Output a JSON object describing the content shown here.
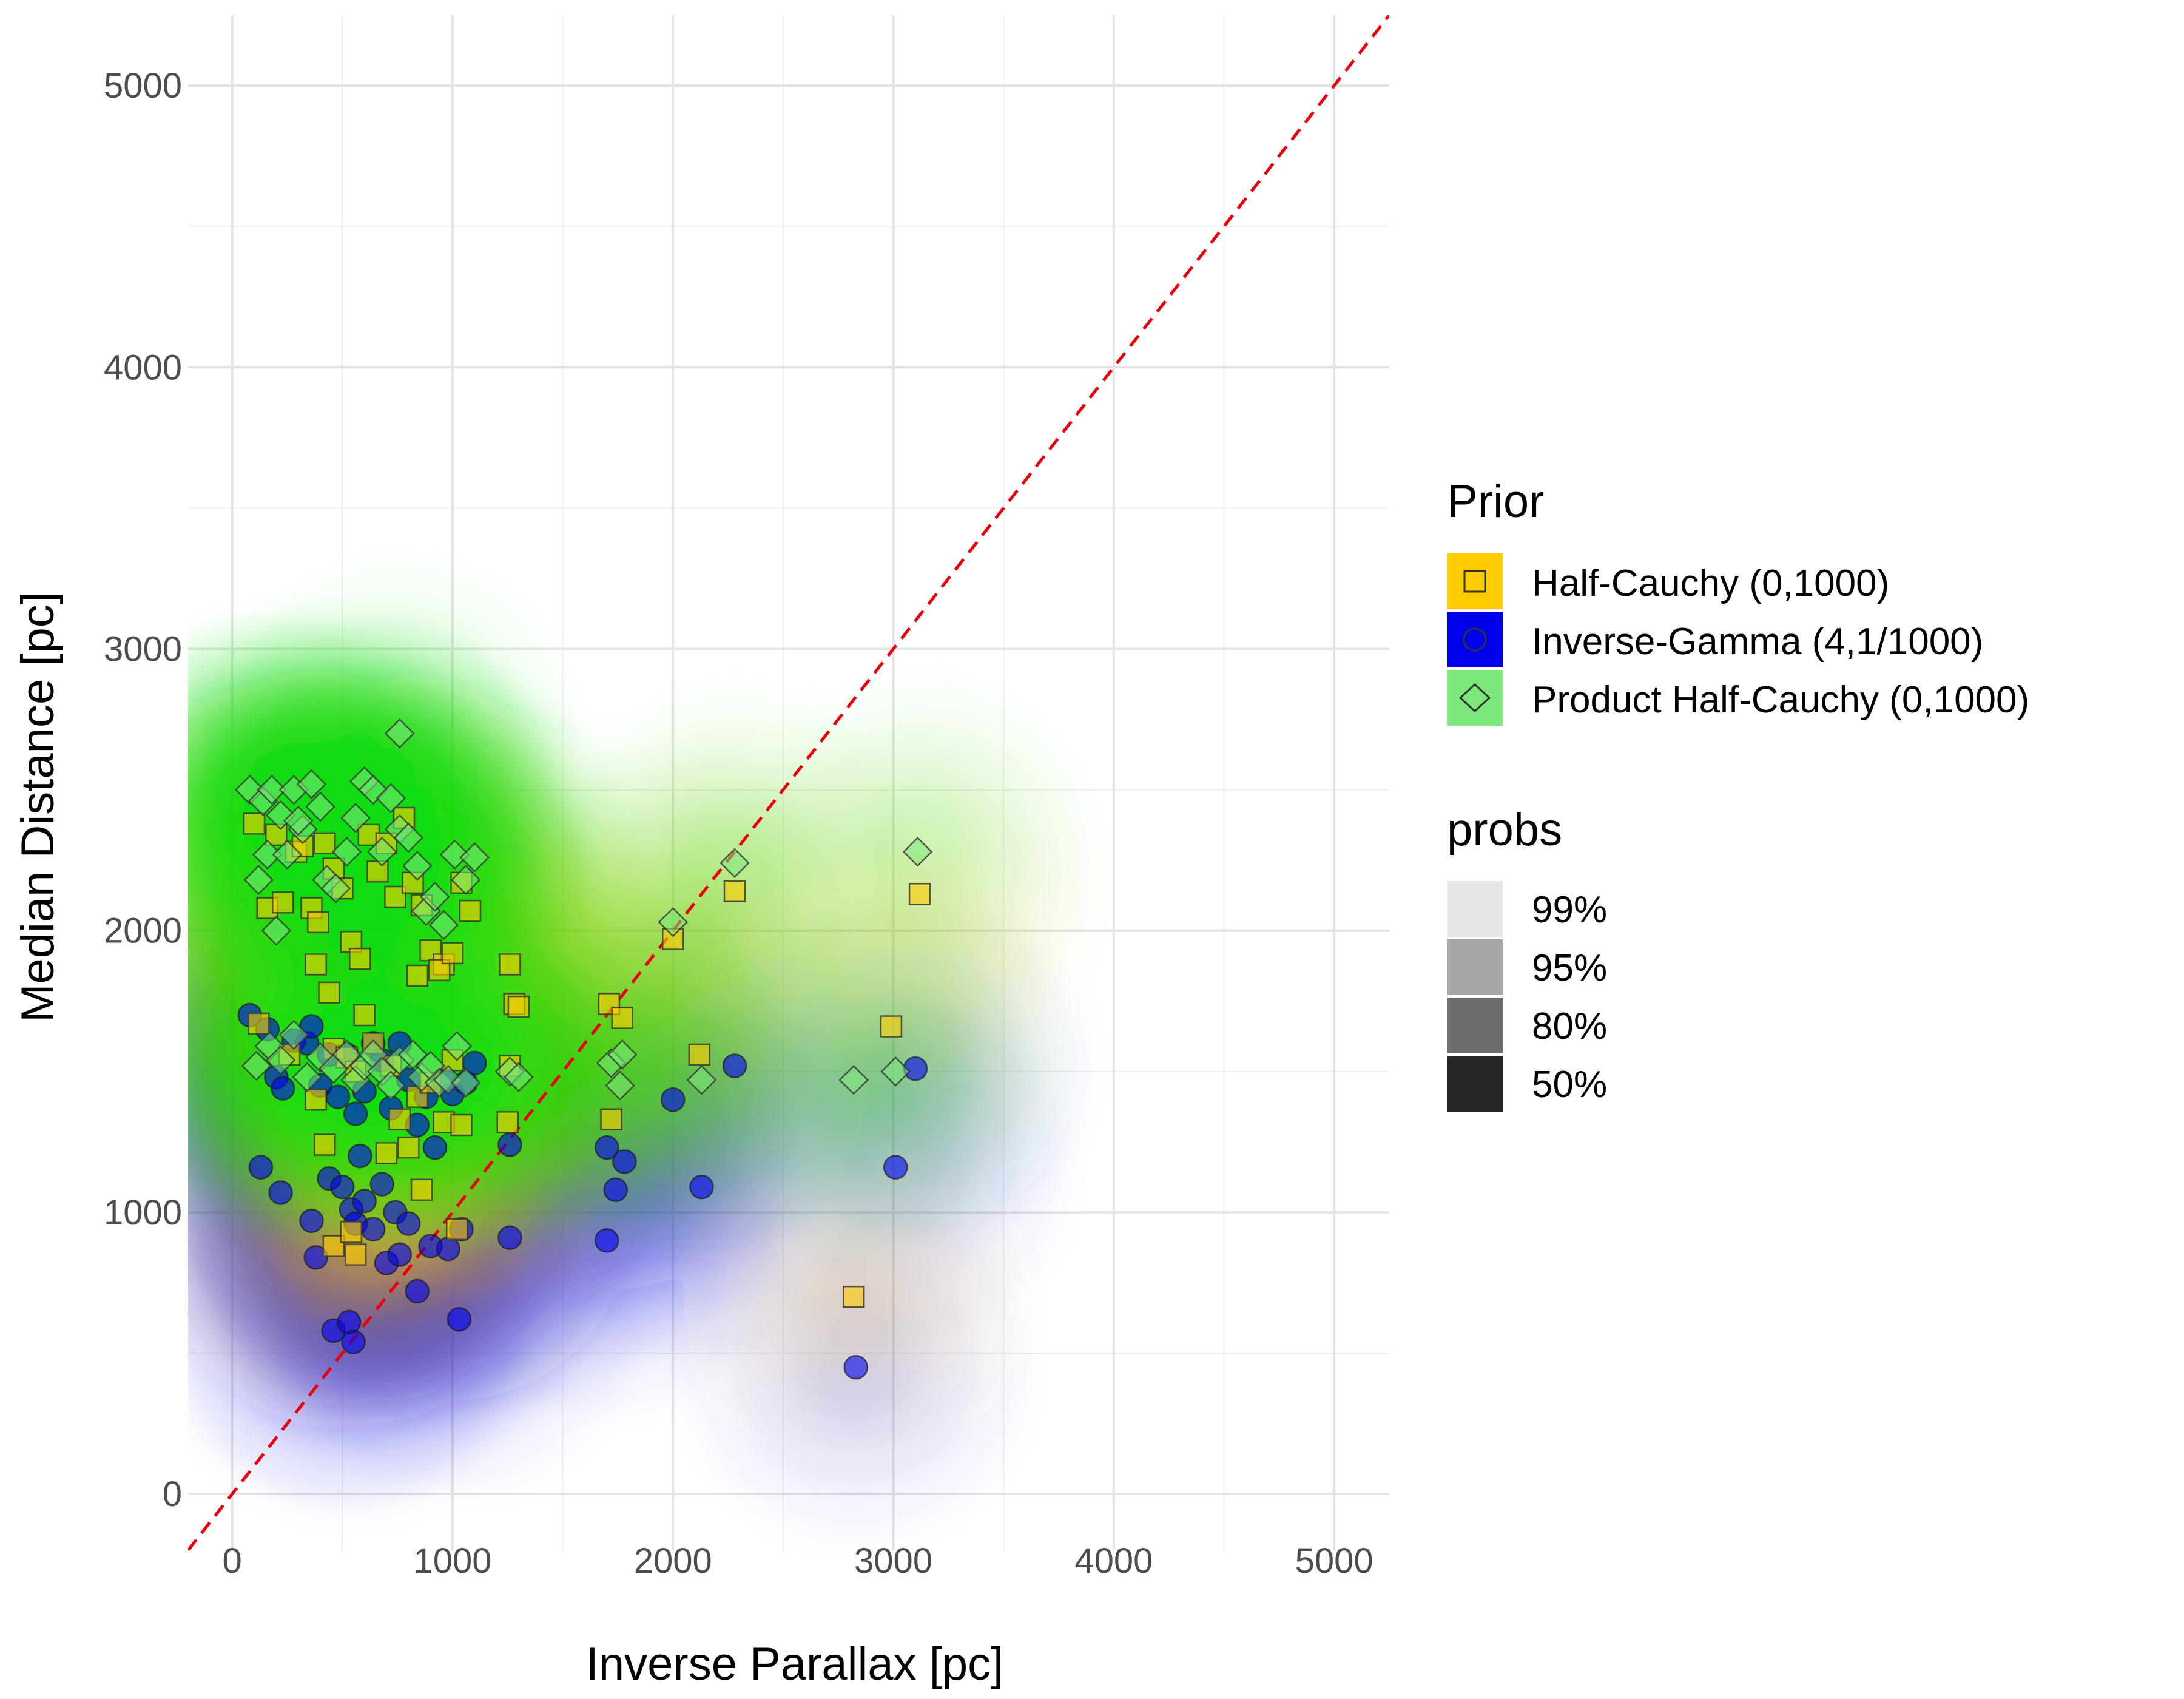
{
  "chart_data": {
    "type": "scatter",
    "xlabel": "Inverse Parallax [pc]",
    "ylabel": "Median Distance [pc]",
    "xlim": [
      -200,
      5250
    ],
    "ylim": [
      -200,
      5250
    ],
    "x_ticks": [
      0,
      1000,
      2000,
      3000,
      4000,
      5000
    ],
    "y_ticks": [
      0,
      1000,
      2000,
      3000,
      4000,
      5000
    ],
    "x_tick_labels": [
      "0",
      "1000",
      "2000",
      "3000",
      "4000",
      "5000"
    ],
    "y_tick_labels": [
      "0",
      "1000",
      "2000",
      "3000",
      "4000",
      "5000"
    ],
    "grid": true,
    "reference_line": {
      "type": "y=x",
      "style": "dashed",
      "color": "#e8000b"
    },
    "legend_prior_title": "Prior",
    "legend_probs_title": "probs",
    "legend_position": "right",
    "prob_levels": [
      "99%",
      "95%",
      "80%",
      "50%"
    ],
    "prob_colors": [
      "#e6e6e6",
      "#a6a6a6",
      "#6b6b6b",
      "#262828"
    ],
    "series": [
      {
        "name": "Half-Cauchy (0,1000)",
        "color": "#FFCC00",
        "shape": "square",
        "points": [
          [
            100,
            2380
          ],
          [
            160,
            2080
          ],
          [
            200,
            2340
          ],
          [
            230,
            2100
          ],
          [
            290,
            2280
          ],
          [
            320,
            2300
          ],
          [
            360,
            2080
          ],
          [
            390,
            2030
          ],
          [
            420,
            2310
          ],
          [
            460,
            2220
          ],
          [
            500,
            2150
          ],
          [
            540,
            1960
          ],
          [
            580,
            1900
          ],
          [
            620,
            2340
          ],
          [
            660,
            2210
          ],
          [
            700,
            2310
          ],
          [
            740,
            2120
          ],
          [
            780,
            2400
          ],
          [
            820,
            2170
          ],
          [
            860,
            2090
          ],
          [
            900,
            1930
          ],
          [
            960,
            1880
          ],
          [
            1040,
            2170
          ],
          [
            1080,
            2070
          ],
          [
            380,
            1880
          ],
          [
            440,
            1780
          ],
          [
            600,
            1700
          ],
          [
            720,
            1520
          ],
          [
            840,
            1840
          ],
          [
            940,
            1860
          ],
          [
            1000,
            1920
          ],
          [
            1260,
            1880
          ],
          [
            1280,
            1740
          ],
          [
            1300,
            1730
          ],
          [
            1710,
            1740
          ],
          [
            1770,
            1690
          ],
          [
            1720,
            1330
          ],
          [
            2000,
            1970
          ],
          [
            2120,
            1560
          ],
          [
            2280,
            2140
          ],
          [
            120,
            1670
          ],
          [
            260,
            1560
          ],
          [
            380,
            1400
          ],
          [
            420,
            1240
          ],
          [
            460,
            1580
          ],
          [
            520,
            1550
          ],
          [
            560,
            1500
          ],
          [
            640,
            1600
          ],
          [
            700,
            1210
          ],
          [
            760,
            1330
          ],
          [
            800,
            1230
          ],
          [
            840,
            1410
          ],
          [
            860,
            1080
          ],
          [
            900,
            1460
          ],
          [
            960,
            1320
          ],
          [
            1000,
            1540
          ],
          [
            1040,
            1310
          ],
          [
            460,
            880
          ],
          [
            540,
            930
          ],
          [
            560,
            850
          ],
          [
            1020,
            940
          ],
          [
            1250,
            1320
          ],
          [
            1260,
            1520
          ],
          [
            2820,
            700
          ],
          [
            2990,
            1660
          ],
          [
            3120,
            2130
          ]
        ]
      },
      {
        "name": "Inverse-Gamma (4,1/1000)",
        "color": "#0000EE",
        "shape": "circle",
        "points": [
          [
            80,
            1700
          ],
          [
            160,
            1650
          ],
          [
            200,
            1480
          ],
          [
            230,
            1440
          ],
          [
            280,
            1610
          ],
          [
            340,
            1600
          ],
          [
            360,
            1660
          ],
          [
            400,
            1450
          ],
          [
            440,
            1560
          ],
          [
            480,
            1410
          ],
          [
            520,
            1560
          ],
          [
            560,
            1350
          ],
          [
            600,
            1430
          ],
          [
            640,
            1600
          ],
          [
            680,
            1540
          ],
          [
            720,
            1370
          ],
          [
            760,
            1600
          ],
          [
            800,
            1470
          ],
          [
            840,
            1310
          ],
          [
            880,
            1410
          ],
          [
            920,
            1230
          ],
          [
            960,
            1470
          ],
          [
            1000,
            1420
          ],
          [
            1060,
            1460
          ],
          [
            1100,
            1530
          ],
          [
            130,
            1160
          ],
          [
            220,
            1070
          ],
          [
            360,
            970
          ],
          [
            380,
            840
          ],
          [
            440,
            1120
          ],
          [
            500,
            1090
          ],
          [
            540,
            1010
          ],
          [
            560,
            960
          ],
          [
            580,
            1200
          ],
          [
            600,
            1040
          ],
          [
            640,
            940
          ],
          [
            680,
            1100
          ],
          [
            700,
            820
          ],
          [
            740,
            1000
          ],
          [
            760,
            850
          ],
          [
            800,
            960
          ],
          [
            840,
            720
          ],
          [
            900,
            880
          ],
          [
            980,
            870
          ],
          [
            1040,
            940
          ],
          [
            460,
            580
          ],
          [
            530,
            610
          ],
          [
            550,
            540
          ],
          [
            1030,
            620
          ],
          [
            1260,
            910
          ],
          [
            1260,
            1240
          ],
          [
            1700,
            900
          ],
          [
            1740,
            1080
          ],
          [
            1780,
            1180
          ],
          [
            1700,
            1230
          ],
          [
            2000,
            1400
          ],
          [
            2130,
            1090
          ],
          [
            2280,
            1520
          ],
          [
            2830,
            450
          ],
          [
            3010,
            1160
          ],
          [
            3100,
            1510
          ]
        ]
      },
      {
        "name": "Product Half-Cauchy (0,1000)",
        "color": "#00DD00",
        "shape": "diamond",
        "points": [
          [
            80,
            2500
          ],
          [
            140,
            2460
          ],
          [
            180,
            2500
          ],
          [
            220,
            2410
          ],
          [
            280,
            2500
          ],
          [
            320,
            2360
          ],
          [
            360,
            2520
          ],
          [
            400,
            2440
          ],
          [
            430,
            2180
          ],
          [
            470,
            2150
          ],
          [
            520,
            2280
          ],
          [
            560,
            2400
          ],
          [
            600,
            2530
          ],
          [
            640,
            2500
          ],
          [
            680,
            2280
          ],
          [
            720,
            2470
          ],
          [
            760,
            2360
          ],
          [
            800,
            2330
          ],
          [
            840,
            2230
          ],
          [
            880,
            2070
          ],
          [
            920,
            2120
          ],
          [
            960,
            2020
          ],
          [
            1010,
            2270
          ],
          [
            1060,
            2180
          ],
          [
            1100,
            2260
          ],
          [
            120,
            2180
          ],
          [
            160,
            2270
          ],
          [
            200,
            2000
          ],
          [
            250,
            2270
          ],
          [
            300,
            2390
          ],
          [
            760,
            2700
          ],
          [
            110,
            1520
          ],
          [
            170,
            1590
          ],
          [
            220,
            1540
          ],
          [
            280,
            1630
          ],
          [
            340,
            1480
          ],
          [
            400,
            1550
          ],
          [
            460,
            1510
          ],
          [
            520,
            1560
          ],
          [
            560,
            1470
          ],
          [
            600,
            1520
          ],
          [
            640,
            1560
          ],
          [
            680,
            1500
          ],
          [
            720,
            1450
          ],
          [
            760,
            1540
          ],
          [
            820,
            1560
          ],
          [
            860,
            1480
          ],
          [
            900,
            1520
          ],
          [
            940,
            1460
          ],
          [
            980,
            1470
          ],
          [
            1020,
            1590
          ],
          [
            1060,
            1460
          ],
          [
            1260,
            1500
          ],
          [
            1300,
            1480
          ],
          [
            1720,
            1530
          ],
          [
            1770,
            1560
          ],
          [
            1760,
            1450
          ],
          [
            2000,
            2030
          ],
          [
            2130,
            1470
          ],
          [
            2280,
            2240
          ],
          [
            2820,
            1470
          ],
          [
            3010,
            1500
          ],
          [
            3110,
            2280
          ]
        ]
      }
    ]
  }
}
